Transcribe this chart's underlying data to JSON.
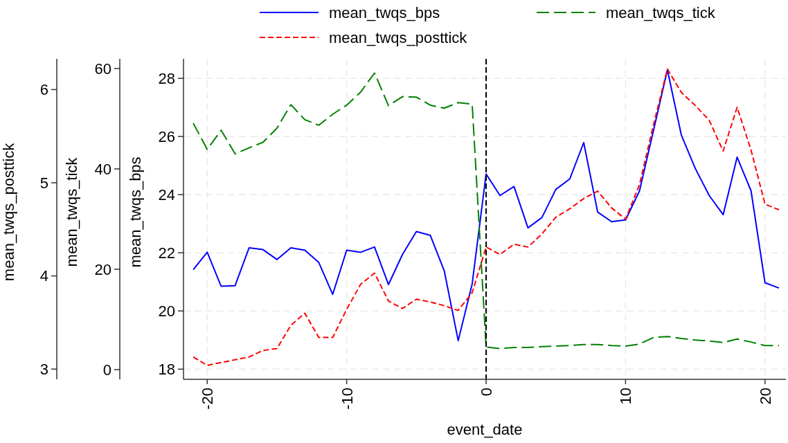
{
  "chart_data": {
    "type": "line",
    "xlabel": "event_date",
    "ylabel": "mean_twqs_bps",
    "y2label": "mean_twqs_tick",
    "y3label": "mean_twqs_posttick",
    "x": [
      -21,
      -20,
      -19,
      -18,
      -17,
      -16,
      -15,
      -14,
      -13,
      -12,
      -11,
      -10,
      -9,
      -8,
      -7,
      -6,
      -5,
      -4,
      -3,
      -2,
      -1,
      0,
      1,
      2,
      3,
      4,
      5,
      6,
      7,
      8,
      9,
      10,
      11,
      12,
      13,
      14,
      15,
      16,
      17,
      18,
      19,
      20,
      21
    ],
    "xlim": [
      -21.7,
      21.5
    ],
    "xticks": [
      -20,
      -10,
      0,
      10,
      20
    ],
    "ylim": [
      17.65,
      28.67
    ],
    "yticks": [
      18,
      20,
      22,
      24,
      26,
      28
    ],
    "y2lim": [
      -1.93,
      61.93
    ],
    "y2ticks": [
      0,
      20,
      40,
      60
    ],
    "y3lim": [
      2.89,
      6.33
    ],
    "y3ticks": [
      3,
      4,
      5,
      6
    ],
    "series": [
      {
        "name": "mean_twqs_bps",
        "color": "#0000ff",
        "line_style": "solid",
        "values": [
          21.42,
          22.02,
          20.85,
          20.87,
          22.17,
          22.11,
          21.77,
          22.17,
          22.09,
          21.67,
          20.57,
          22.09,
          22.02,
          22.2,
          20.91,
          21.94,
          22.73,
          22.6,
          21.38,
          18.98,
          20.93,
          24.71,
          23.97,
          24.28,
          22.86,
          23.21,
          24.18,
          24.54,
          25.79,
          23.4,
          23.07,
          23.13,
          24.13,
          26.2,
          28.29,
          26.05,
          24.9,
          23.97,
          23.31,
          25.29,
          24.13,
          20.97,
          20.79
        ]
      },
      {
        "name": "mean_twqs_tick",
        "color": "#008000",
        "line_style": "dashed",
        "axis": "y2",
        "values": [
          49.1,
          43.9,
          47.7,
          43.0,
          44.2,
          45.3,
          48.1,
          52.8,
          49.8,
          48.7,
          50.9,
          52.7,
          55.3,
          59.1,
          52.6,
          54.4,
          54.3,
          52.7,
          52.1,
          53.2,
          52.9,
          4.5,
          4.2,
          4.4,
          4.4,
          4.6,
          4.7,
          4.8,
          5.0,
          5.0,
          4.8,
          4.7,
          5.1,
          6.4,
          6.6,
          6.2,
          5.9,
          5.7,
          5.4,
          6.1,
          5.5,
          4.8,
          4.8
        ]
      },
      {
        "name": "mean_twqs_posttick",
        "color": "#ff0000",
        "line_style": "dashed",
        "axis": "y3",
        "values": [
          3.13,
          3.04,
          3.07,
          3.1,
          3.13,
          3.2,
          3.22,
          3.47,
          3.6,
          3.34,
          3.34,
          3.64,
          3.91,
          4.03,
          3.73,
          3.65,
          3.75,
          3.72,
          3.68,
          3.63,
          3.82,
          4.31,
          4.23,
          4.34,
          4.31,
          4.45,
          4.63,
          4.72,
          4.83,
          4.91,
          4.73,
          4.61,
          4.98,
          5.62,
          6.22,
          5.97,
          5.83,
          5.67,
          5.34,
          5.81,
          5.35,
          4.77,
          4.71
        ]
      }
    ],
    "ref_lines": [
      {
        "axis": "x",
        "value": 0,
        "color": "#000000",
        "line_style": "dashed"
      }
    ],
    "grid": true,
    "legend": "top",
    "marker": "none"
  }
}
